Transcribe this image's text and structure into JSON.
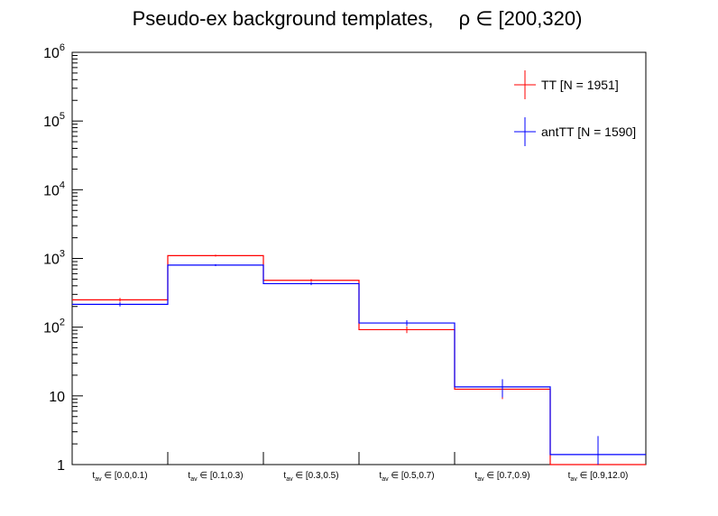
{
  "chart_data": {
    "type": "bar",
    "title": "Pseudo-ex background templates,   ρ ∈ [200,320)",
    "title_parts": {
      "main": "Pseudo-ex background templates,",
      "rho": "ρ ∈ [200,320)"
    },
    "xlabel": "",
    "ylabel": "",
    "y_scale": "log",
    "ylim": [
      1,
      1000000
    ],
    "y_ticks": [
      {
        "value": 1,
        "base": "1",
        "exp": ""
      },
      {
        "value": 10,
        "base": "10",
        "exp": ""
      },
      {
        "value": 100,
        "base": "10",
        "exp": "2"
      },
      {
        "value": 1000,
        "base": "10",
        "exp": "3"
      },
      {
        "value": 10000,
        "base": "10",
        "exp": "4"
      },
      {
        "value": 100000,
        "base": "10",
        "exp": "5"
      },
      {
        "value": 1000000,
        "base": "10",
        "exp": "6"
      }
    ],
    "categories": [
      {
        "main": "t",
        "sub": "av",
        "rest": " ∈ [0.0,0.1)"
      },
      {
        "main": "t",
        "sub": "av",
        "rest": " ∈ [0.1,0.3)"
      },
      {
        "main": "t",
        "sub": "av",
        "rest": " ∈ [0.3,0.5)"
      },
      {
        "main": "t",
        "sub": "av",
        "rest": " ∈ [0.5,0.7)"
      },
      {
        "main": "t",
        "sub": "av",
        "rest": " ∈ [0.7,0.9)"
      },
      {
        "main": "t",
        "sub": "av",
        "rest": " ∈ [0.9,12.0)"
      }
    ],
    "series": [
      {
        "name": "TT [N = 1951]",
        "color": "#ff0000",
        "values": [
          250,
          1100,
          480,
          92,
          12.5,
          0
        ],
        "errors": [
          16,
          33,
          22,
          10,
          3.5,
          0
        ]
      },
      {
        "name": "antTT [N = 1590]",
        "color": "#0000ff",
        "values": [
          215,
          800,
          430,
          115,
          13.5,
          1.4
        ],
        "errors": [
          15,
          28,
          21,
          11,
          4,
          1.2
        ]
      }
    ],
    "legend_position": "top-right",
    "grid": false,
    "style": "step-histogram"
  }
}
